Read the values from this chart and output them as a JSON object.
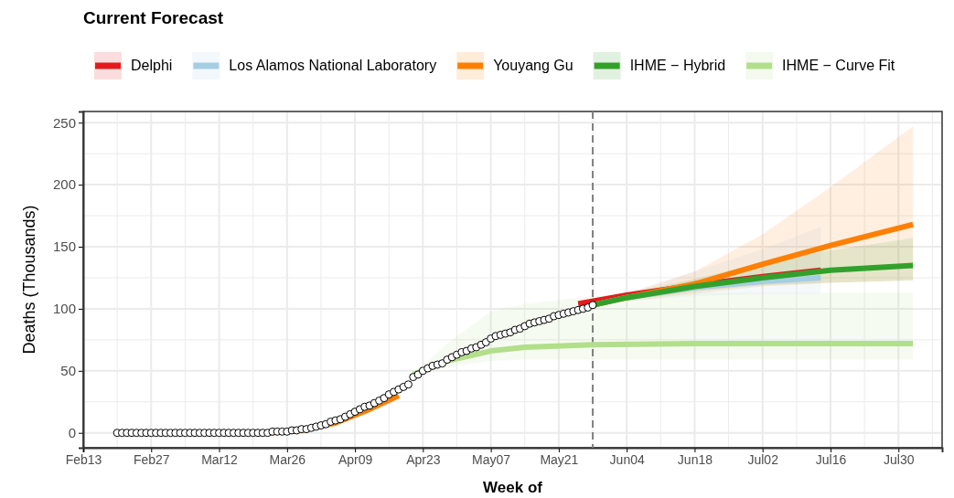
{
  "chart_data": {
    "type": "line",
    "title": "Current Forecast",
    "xlabel": "Week of",
    "ylabel": "Deaths (Thousands)",
    "xlim": [
      "--02-13",
      "--08-08"
    ],
    "ylim": [
      -12,
      259
    ],
    "xticks": [
      {
        "value": "--02-13",
        "label": "Feb13"
      },
      {
        "value": "--02-20",
        "label": null
      },
      {
        "value": "--02-27",
        "label": "Feb27"
      },
      {
        "value": "--03-05",
        "label": null
      },
      {
        "value": "--03-12",
        "label": "Mar12"
      },
      {
        "value": "--03-19",
        "label": null
      },
      {
        "value": "--03-26",
        "label": "Mar26"
      },
      {
        "value": "--04-02",
        "label": null
      },
      {
        "value": "--04-09",
        "label": "Apr09"
      },
      {
        "value": "--04-16",
        "label": null
      },
      {
        "value": "--04-23",
        "label": "Apr23"
      },
      {
        "value": "--04-30",
        "label": null
      },
      {
        "value": "--05-07",
        "label": "May07"
      },
      {
        "value": "--05-14",
        "label": null
      },
      {
        "value": "--05-21",
        "label": "May21"
      },
      {
        "value": "--05-28",
        "label": null
      },
      {
        "value": "--06-04",
        "label": "Jun04"
      },
      {
        "value": "--06-11",
        "label": null
      },
      {
        "value": "--06-18",
        "label": "Jun18"
      },
      {
        "value": "--06-25",
        "label": null
      },
      {
        "value": "--07-02",
        "label": "Jul02"
      },
      {
        "value": "--07-09",
        "label": null
      },
      {
        "value": "--07-16",
        "label": "Jul16"
      },
      {
        "value": "--07-23",
        "label": null
      },
      {
        "value": "--07-30",
        "label": "Jul30"
      },
      {
        "value": "--08-06",
        "label": null
      }
    ],
    "yticks": [
      0,
      {
        "value": 25,
        "label": null
      },
      50,
      {
        "value": 75,
        "label": null
      },
      100,
      {
        "value": 125,
        "label": null
      },
      150,
      {
        "value": 175,
        "label": null
      },
      200,
      {
        "value": 225,
        "label": null
      },
      250
    ],
    "grid": true,
    "legend": "top left",
    "ref_lines": [
      {
        "axis": "x",
        "value": "--05-28",
        "color": "#808080",
        "line_style": "dashed"
      }
    ],
    "series": [
      {
        "name": "Delphi",
        "color": "#e41a1c",
        "x": [
          "--05-25",
          "--06-04",
          "--06-18",
          "--07-02",
          "--07-14"
        ],
        "values": [
          104,
          111,
          119,
          126,
          131
        ]
      },
      {
        "name": "Los Alamos National Laboratory",
        "color": "#a6cee3",
        "x": [
          "--05-28",
          "--06-04",
          "--06-18",
          "--07-02",
          "--07-14"
        ],
        "values": [
          103,
          109,
          117,
          122,
          125
        ],
        "lower": [
          103,
          106,
          110,
          112,
          112
        ],
        "upper": [
          103,
          113,
          130,
          148,
          166
        ]
      },
      {
        "name": "Youyang Gu",
        "color": "#ff7f00",
        "x": [
          "--03-22",
          "--03-29",
          "--04-05",
          "--04-12",
          "--04-18",
          "--05-01",
          "--05-28",
          "--06-04",
          "--06-18",
          "--07-02",
          "--07-16",
          "--08-02"
        ],
        "values": [
          0,
          2,
          8,
          19,
          30,
          null,
          103,
          109,
          120,
          136,
          151,
          168
        ],
        "lower": [
          null,
          null,
          null,
          null,
          null,
          null,
          103,
          106,
          112,
          118,
          121,
          123
        ],
        "upper": [
          null,
          null,
          null,
          null,
          null,
          null,
          103,
          112,
          130,
          160,
          198,
          247
        ]
      },
      {
        "name": "IHME − Hybrid",
        "color": "#33a02c",
        "x": [
          "--05-28",
          "--06-04",
          "--06-18",
          "--07-02",
          "--07-16",
          "--08-02"
        ],
        "values": [
          103,
          109,
          118,
          125,
          131,
          135
        ],
        "lower": [
          103,
          107,
          114,
          119,
          121,
          123
        ],
        "upper": [
          103,
          112,
          124,
          137,
          147,
          157
        ]
      },
      {
        "name": "IHME − Curve Fit",
        "color": "#b2df8a",
        "x": [
          "--04-21",
          "--04-28",
          "--05-07",
          "--05-14",
          "--05-28",
          "--06-18",
          "--07-16",
          "--08-02"
        ],
        "values": [
          47,
          58,
          66,
          69,
          71,
          72,
          72,
          72
        ],
        "lower": [
          47,
          53,
          58,
          59,
          59,
          59,
          59,
          59
        ],
        "upper": [
          47,
          72,
          98,
          104,
          110,
          113,
          113,
          113
        ]
      },
      {
        "type": "scatter",
        "marker": "circle",
        "color": "#000000",
        "x": [
          "--02-20",
          "--02-21",
          "--02-22",
          "--02-23",
          "--02-24",
          "--02-25",
          "--02-26",
          "--02-27",
          "--02-28",
          "--02-29",
          "--03-01",
          "--03-02",
          "--03-03",
          "--03-04",
          "--03-05",
          "--03-06",
          "--03-07",
          "--03-08",
          "--03-09",
          "--03-10",
          "--03-11",
          "--03-12",
          "--03-13",
          "--03-14",
          "--03-15",
          "--03-16",
          "--03-17",
          "--03-18",
          "--03-19",
          "--03-20",
          "--03-21",
          "--03-22",
          "--03-23",
          "--03-24",
          "--03-25",
          "--03-26",
          "--03-27",
          "--03-28",
          "--03-29",
          "--03-30",
          "--03-31",
          "--04-01",
          "--04-02",
          "--04-03",
          "--04-04",
          "--04-05",
          "--04-06",
          "--04-07",
          "--04-08",
          "--04-09",
          "--04-10",
          "--04-11",
          "--04-12",
          "--04-13",
          "--04-14",
          "--04-15",
          "--04-16",
          "--04-17",
          "--04-18",
          "--04-19",
          "--04-20",
          "--04-21",
          "--04-22",
          "--04-23",
          "--04-24",
          "--04-25",
          "--04-26",
          "--04-27",
          "--04-28",
          "--04-29",
          "--04-30",
          "--05-01",
          "--05-02",
          "--05-03",
          "--05-04",
          "--05-05",
          "--05-06",
          "--05-07",
          "--05-08",
          "--05-09",
          "--05-10",
          "--05-11",
          "--05-12",
          "--05-13",
          "--05-14",
          "--05-15",
          "--05-16",
          "--05-17",
          "--05-18",
          "--05-19",
          "--05-20",
          "--05-21",
          "--05-22",
          "--05-23",
          "--05-24",
          "--05-25",
          "--05-26",
          "--05-27",
          "--05-28"
        ],
        "values": [
          0,
          0,
          0,
          0,
          0,
          0,
          0,
          0,
          0,
          0,
          0,
          0,
          0,
          0,
          0,
          0,
          0,
          0,
          0,
          0,
          0,
          0,
          0,
          0,
          0,
          0,
          0,
          0,
          0,
          0,
          0,
          0,
          1,
          1,
          1,
          1,
          2,
          2,
          3,
          3,
          4,
          5,
          6,
          7,
          9,
          10,
          11,
          13,
          15,
          17,
          19,
          21,
          22,
          24,
          26,
          28,
          31,
          33,
          35,
          37,
          39,
          45,
          47,
          50,
          52,
          54,
          55,
          56,
          59,
          61,
          63,
          65,
          66,
          68,
          69,
          71,
          73,
          76,
          78,
          79,
          80,
          81,
          83,
          84,
          86,
          88,
          89,
          90,
          91,
          92,
          94,
          95,
          96,
          97,
          98,
          99,
          100,
          101,
          103
        ]
      }
    ]
  }
}
